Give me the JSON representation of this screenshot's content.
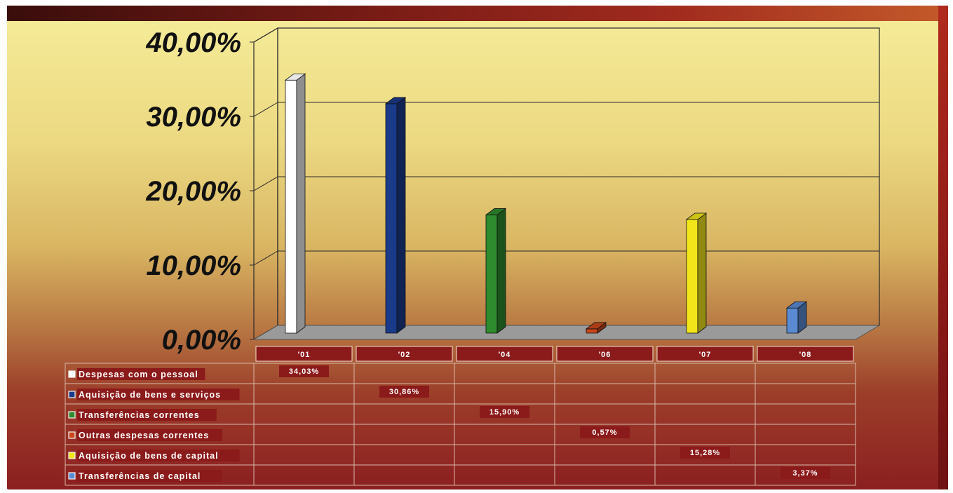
{
  "chart_data": {
    "type": "bar",
    "categories": [
      "'01",
      "'02",
      "'04",
      "'06",
      "'07",
      "'08"
    ],
    "ylim": [
      0,
      40
    ],
    "y_ticks": [
      "0,00%",
      "10,00%",
      "20,00%",
      "30,00%",
      "40,00%"
    ],
    "grid": true,
    "legend_placement": "bottom data table",
    "series": [
      {
        "name": "Despesas com o pessoal",
        "color": "#ffffff",
        "values": [
          34.03,
          null,
          null,
          null,
          null,
          null
        ],
        "labels": [
          "34,03%",
          "",
          "",
          "",
          "",
          ""
        ]
      },
      {
        "name": "Aquisição de bens e serviços",
        "color": "#1a3a8a",
        "values": [
          null,
          30.86,
          null,
          null,
          null,
          null
        ],
        "labels": [
          "",
          "30,86%",
          "",
          "",
          "",
          ""
        ]
      },
      {
        "name": "Transferências correntes",
        "color": "#2e8b2e",
        "values": [
          null,
          null,
          15.9,
          null,
          null,
          null
        ],
        "labels": [
          "",
          "",
          "15,90%",
          "",
          "",
          ""
        ]
      },
      {
        "name": "Outras despesas correntes",
        "color": "#c8461a",
        "values": [
          null,
          null,
          null,
          0.57,
          null,
          null
        ],
        "labels": [
          "",
          "",
          "",
          "0,57%",
          "",
          ""
        ]
      },
      {
        "name": "Aquisição de bens de capital",
        "color": "#f2e61a",
        "values": [
          null,
          null,
          null,
          null,
          15.28,
          null
        ],
        "labels": [
          "",
          "",
          "",
          "",
          "15,28%",
          ""
        ]
      },
      {
        "name": "Transferências de capital",
        "color": "#5a8ad2",
        "values": [
          null,
          null,
          null,
          null,
          null,
          3.37
        ],
        "labels": [
          "",
          "",
          "",
          "",
          "",
          "3,37%"
        ]
      }
    ]
  }
}
